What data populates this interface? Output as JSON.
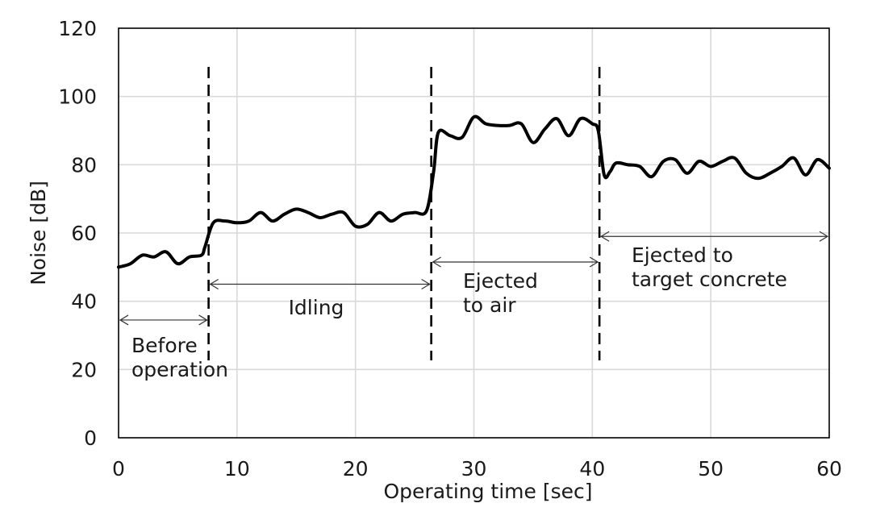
{
  "chart_data": {
    "type": "line",
    "title": "",
    "xlabel": "Operating time [sec]",
    "ylabel": "Noise [dB]",
    "xlim": [
      0,
      60
    ],
    "ylim": [
      0,
      120
    ],
    "xticks": [
      "0",
      "10",
      "20",
      "30",
      "40",
      "50",
      "60"
    ],
    "yticks": [
      "0",
      "20",
      "40",
      "60",
      "80",
      "100",
      "120"
    ],
    "grid": true,
    "legend": "none",
    "series": [
      {
        "color": "#000000",
        "x": [
          0,
          1,
          2,
          3,
          4,
          5,
          6,
          7,
          7.3,
          8,
          9,
          10,
          11,
          12,
          13,
          14,
          15,
          16,
          17,
          18,
          19,
          20,
          21,
          22,
          23,
          24,
          25,
          26,
          26.6,
          27,
          28,
          29,
          30,
          31,
          32,
          33,
          34,
          35,
          36,
          37,
          38,
          39,
          40,
          40.5,
          41,
          41.5,
          42,
          43,
          44,
          45,
          46,
          47,
          48,
          49,
          50,
          51,
          52,
          53,
          54,
          55,
          56,
          57,
          58,
          59,
          60
        ],
        "y": [
          50,
          51,
          53.5,
          53,
          54.5,
          51,
          53,
          53.5,
          56,
          63,
          63.5,
          63,
          63.5,
          66,
          63.5,
          65.5,
          67,
          66,
          64.5,
          65.5,
          66,
          62,
          62.5,
          66,
          63.5,
          65.5,
          66,
          66.5,
          78,
          89.5,
          88.5,
          88,
          94,
          92,
          91.5,
          91.5,
          92,
          86.5,
          90.5,
          93.5,
          88.5,
          93.5,
          92,
          90,
          77,
          78,
          80.5,
          80,
          79.5,
          76.5,
          81,
          81.5,
          77.5,
          81,
          79.5,
          81,
          82,
          77.5,
          76,
          77.5,
          79.5,
          82,
          77,
          81.5,
          79
        ]
      }
    ],
    "phase_boundaries": [
      7.6,
      26.4,
      40.6
    ],
    "phases": [
      {
        "label_lines": [
          "Before",
          "operation"
        ],
        "x_start": 0,
        "x_end": 7.6,
        "arrow_y": 34.5
      },
      {
        "label_lines": [
          "Idling"
        ],
        "x_start": 7.6,
        "x_end": 26.4,
        "arrow_y": 45
      },
      {
        "label_lines": [
          "Ejected",
          "to air"
        ],
        "x_start": 26.4,
        "x_end": 40.6,
        "arrow_y": 51.5
      },
      {
        "label_lines": [
          "Ejected to",
          "target concrete"
        ],
        "x_start": 40.6,
        "x_end": 60,
        "arrow_y": 59
      }
    ]
  }
}
